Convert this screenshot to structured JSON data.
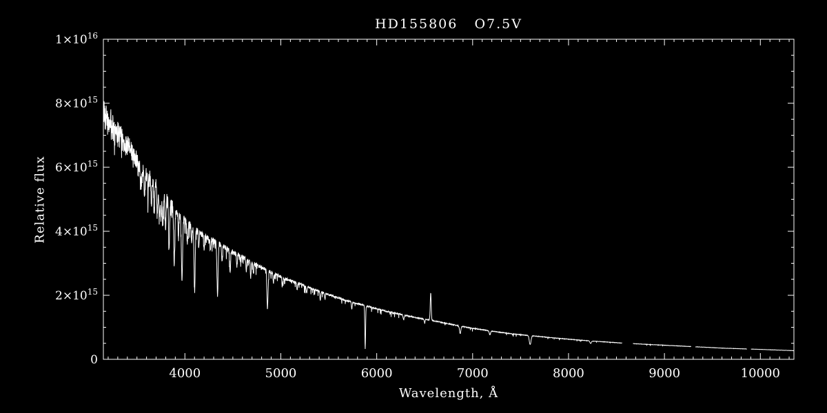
{
  "chart_data": {
    "type": "line",
    "title": "HD155806   O7.5V",
    "xlabel": "Wavelength, Å",
    "ylabel": "Relative flux",
    "x_unit": "Angstrom",
    "y_unit": "1e15 relative flux units",
    "xlim": [
      3150,
      10350
    ],
    "ylim": [
      0,
      10
    ],
    "x_major_ticks": [
      4000,
      5000,
      6000,
      7000,
      8000,
      9000,
      10000
    ],
    "x_tick_labels": [
      "4000",
      "5000",
      "6000",
      "7000",
      "8000",
      "9000",
      "10000"
    ],
    "x_minor_step": 100,
    "y_major_ticks": [
      0,
      2,
      4,
      6,
      8,
      10
    ],
    "y_tick_labels": [
      "0",
      "2×10^15",
      "4×10^15",
      "6×10^15",
      "8×10^15",
      "1×10^16"
    ],
    "y_minor_step": 0.5,
    "colors": {
      "background": "#000000",
      "foreground": "#ffffff",
      "line": "#ffffff"
    },
    "legend": "none",
    "grid": false,
    "step": 2,
    "continuum": [
      [
        3150,
        7.75
      ],
      [
        3200,
        7.5
      ],
      [
        3250,
        7.3
      ],
      [
        3300,
        7.1
      ],
      [
        3350,
        6.9
      ],
      [
        3400,
        6.7
      ],
      [
        3450,
        6.45
      ],
      [
        3500,
        6.2
      ],
      [
        3550,
        6.0
      ],
      [
        3600,
        5.8
      ],
      [
        3650,
        5.62
      ],
      [
        3700,
        5.45
      ],
      [
        3750,
        5.28
      ],
      [
        3800,
        5.1
      ],
      [
        3850,
        4.9
      ],
      [
        3900,
        4.68
      ],
      [
        3950,
        4.5
      ],
      [
        4000,
        4.32
      ],
      [
        4100,
        4.05
      ],
      [
        4200,
        3.85
      ],
      [
        4300,
        3.7
      ],
      [
        4400,
        3.52
      ],
      [
        4500,
        3.35
      ],
      [
        4600,
        3.2
      ],
      [
        4700,
        3.02
      ],
      [
        4800,
        2.88
      ],
      [
        4900,
        2.72
      ],
      [
        5000,
        2.58
      ],
      [
        5100,
        2.46
      ],
      [
        5200,
        2.35
      ],
      [
        5300,
        2.24
      ],
      [
        5400,
        2.13
      ],
      [
        5500,
        2.02
      ],
      [
        5600,
        1.92
      ],
      [
        5700,
        1.82
      ],
      [
        5800,
        1.74
      ],
      [
        5900,
        1.66
      ],
      [
        6000,
        1.58
      ],
      [
        6100,
        1.5
      ],
      [
        6200,
        1.44
      ],
      [
        6300,
        1.37
      ],
      [
        6400,
        1.31
      ],
      [
        6500,
        1.25
      ],
      [
        6600,
        1.2
      ],
      [
        6700,
        1.14
      ],
      [
        6800,
        1.08
      ],
      [
        6900,
        1.02
      ],
      [
        7000,
        0.97
      ],
      [
        7200,
        0.88
      ],
      [
        7400,
        0.8
      ],
      [
        7600,
        0.74
      ],
      [
        7800,
        0.68
      ],
      [
        8000,
        0.63
      ],
      [
        8200,
        0.58
      ],
      [
        8400,
        0.54
      ],
      [
        8600,
        0.5
      ],
      [
        8800,
        0.47
      ],
      [
        9000,
        0.44
      ],
      [
        9200,
        0.41
      ],
      [
        9400,
        0.38
      ],
      [
        9600,
        0.35
      ],
      [
        9800,
        0.33
      ],
      [
        10000,
        0.31
      ],
      [
        10350,
        0.27
      ]
    ],
    "absorption_lines": [
      [
        3545,
        0.55,
        5
      ],
      [
        3580,
        0.7,
        5
      ],
      [
        3615,
        0.6,
        5
      ],
      [
        3650,
        0.75,
        5
      ],
      [
        3680,
        0.9,
        5
      ],
      [
        3712,
        0.85,
        5
      ],
      [
        3734,
        0.95,
        5
      ],
      [
        3750,
        0.85,
        5
      ],
      [
        3770,
        0.95,
        6
      ],
      [
        3798,
        1.05,
        6
      ],
      [
        3835,
        1.3,
        6
      ],
      [
        3889,
        1.7,
        6
      ],
      [
        3933,
        0.8,
        4
      ],
      [
        3970,
        2.0,
        6
      ],
      [
        4026,
        0.7,
        5
      ],
      [
        4070,
        0.5,
        4
      ],
      [
        4101,
        1.9,
        6
      ],
      [
        4144,
        0.4,
        4
      ],
      [
        4200,
        0.45,
        4
      ],
      [
        4267,
        0.35,
        4
      ],
      [
        4340,
        1.6,
        6
      ],
      [
        4387,
        0.5,
        4
      ],
      [
        4471,
        0.65,
        5
      ],
      [
        4542,
        0.4,
        4
      ],
      [
        4640,
        0.35,
        4
      ],
      [
        4686,
        0.5,
        4
      ],
      [
        4713,
        0.3,
        4
      ],
      [
        4861,
        1.2,
        6
      ],
      [
        4922,
        0.3,
        4
      ],
      [
        5015,
        0.28,
        4
      ],
      [
        5170,
        0.2,
        4
      ],
      [
        5270,
        0.2,
        4
      ],
      [
        5411,
        0.3,
        4
      ],
      [
        5460,
        0.18,
        4
      ],
      [
        5740,
        0.22,
        4
      ],
      [
        5880,
        1.35,
        4
      ],
      [
        6280,
        0.15,
        5
      ],
      [
        6500,
        0.12,
        4
      ],
      [
        6870,
        0.22,
        7
      ],
      [
        7180,
        0.12,
        7
      ],
      [
        7600,
        0.28,
        9
      ],
      [
        8230,
        0.08,
        7
      ]
    ],
    "emission_lines": [
      [
        6563,
        0.85,
        5
      ]
    ],
    "gaps": [
      [
        8560,
        8670
      ],
      [
        9280,
        9320
      ],
      [
        9860,
        9900
      ]
    ],
    "noise": {
      "seed": 42,
      "base": 0.012,
      "blue": 0.05,
      "blue_scale": 900,
      "spike_p": 0.3,
      "spike_scale": 1600,
      "spike_depth": 0.5,
      "spike_scale2": 2600
    }
  }
}
